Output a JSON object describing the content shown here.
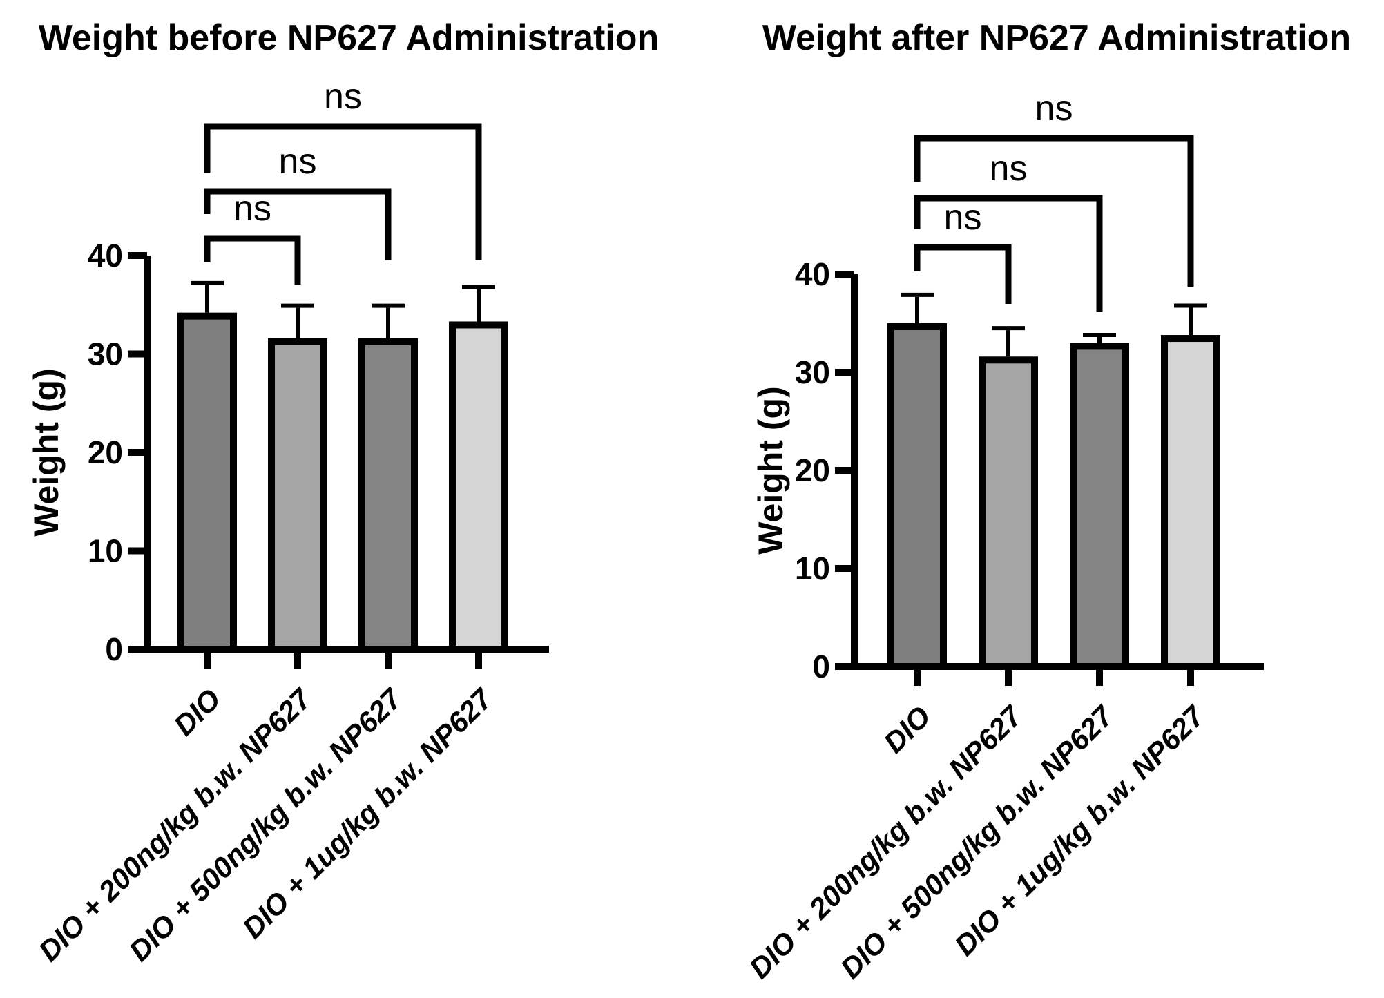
{
  "figure": {
    "background_color": "#ffffff",
    "ink_color": "#000000"
  },
  "chart_data": [
    {
      "id": "before",
      "type": "bar",
      "title": "Weight before NP627 Administration",
      "xlabel": "",
      "ylabel": "Weight (g)",
      "ylim": [
        0,
        40
      ],
      "yticks": [
        0,
        10,
        20,
        30,
        40
      ],
      "grid": false,
      "legend": null,
      "categories": [
        "DIO",
        "DIO + 200ng/kg b.w. NP627",
        "DIO + 500ng/kg b.w. NP627",
        "DIO + 1ug/kg b.w. NP627"
      ],
      "values": [
        34.2,
        31.6,
        31.6,
        33.3
      ],
      "errors_up": [
        3.0,
        3.3,
        3.3,
        3.5
      ],
      "bar_colors": [
        "#7f7f7f",
        "#a5a5a5",
        "#848484",
        "#d5d5d5"
      ],
      "bar_outline_color": "#000000",
      "comparisons": [
        {
          "from": 0,
          "to": 1,
          "label": "ns"
        },
        {
          "from": 0,
          "to": 2,
          "label": "ns"
        },
        {
          "from": 0,
          "to": 3,
          "label": "ns"
        }
      ]
    },
    {
      "id": "after",
      "type": "bar",
      "title": "Weight after NP627 Administration",
      "xlabel": "",
      "ylabel": "Weight (g)",
      "ylim": [
        0,
        40
      ],
      "yticks": [
        0,
        10,
        20,
        30,
        40
      ],
      "grid": false,
      "legend": null,
      "categories": [
        "DIO",
        "DIO + 200ng/kg b.w. NP627",
        "DIO + 500ng/kg b.w. NP627",
        "DIO + 1ug/kg b.w. NP627"
      ],
      "values": [
        35.0,
        31.6,
        33.0,
        33.8
      ],
      "errors_up": [
        2.9,
        2.9,
        0.8,
        3.0
      ],
      "bar_colors": [
        "#7f7f7f",
        "#a5a5a5",
        "#848484",
        "#d5d5d5"
      ],
      "bar_outline_color": "#000000",
      "comparisons": [
        {
          "from": 0,
          "to": 1,
          "label": "ns"
        },
        {
          "from": 0,
          "to": 2,
          "label": "ns"
        },
        {
          "from": 0,
          "to": 3,
          "label": "ns"
        }
      ]
    }
  ]
}
